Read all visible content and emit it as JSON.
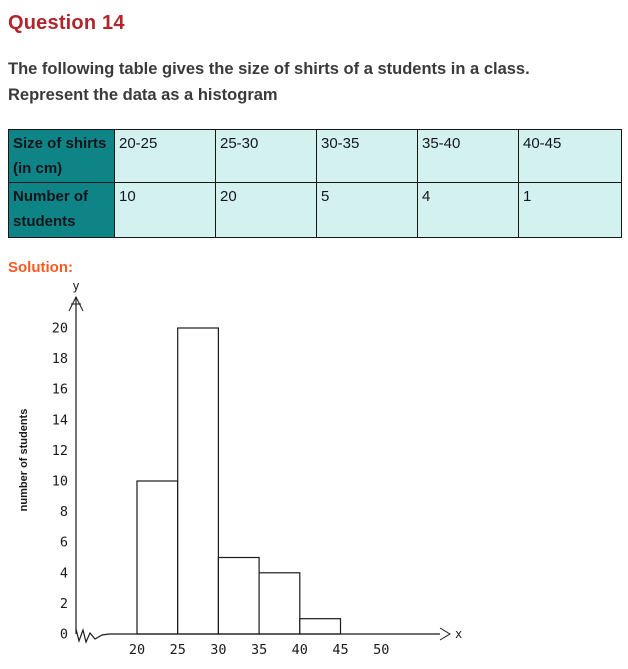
{
  "page": {
    "title": "Question 14",
    "question_line1": "The following table gives the size of shirts of a students in a class.",
    "question_line2": "Represent the data as a histogram",
    "solution_label": "Solution:"
  },
  "colors": {
    "title_red": "#b1262d",
    "solution_orange": "#fb5a22",
    "table_header_bg": "#0f8487",
    "table_cell_bg": "#d3f2ef",
    "table_border": "#161616",
    "body_text": "#3a3a3a",
    "chart_stroke": "#1a1a1a"
  },
  "table": {
    "row1": {
      "header": "Size of shirts (in cm)",
      "values": [
        "20-25",
        "25-30",
        "30-35",
        "35-40",
        "40-45"
      ]
    },
    "row2": {
      "header": "Number of students",
      "values": [
        "10",
        "20",
        "5",
        "4",
        "1"
      ]
    }
  },
  "chart_data": {
    "type": "bar",
    "title": "",
    "xlabel": "x",
    "ylabel": "number of students",
    "y_axis_letter": "y",
    "x_axis_letter": "x",
    "categories": [
      "20-25",
      "25-30",
      "30-35",
      "35-40",
      "40-45"
    ],
    "bin_edges": [
      20,
      25,
      30,
      35,
      40,
      45
    ],
    "values": [
      10,
      20,
      5,
      4,
      1
    ],
    "x_ticks": [
      20,
      25,
      30,
      35,
      40,
      45,
      50
    ],
    "y_ticks": [
      0,
      2,
      4,
      6,
      8,
      10,
      12,
      14,
      16,
      18,
      20
    ],
    "ylim": [
      0,
      21
    ],
    "grid": false,
    "legend": false,
    "axis_break_before_first_bin": true
  }
}
